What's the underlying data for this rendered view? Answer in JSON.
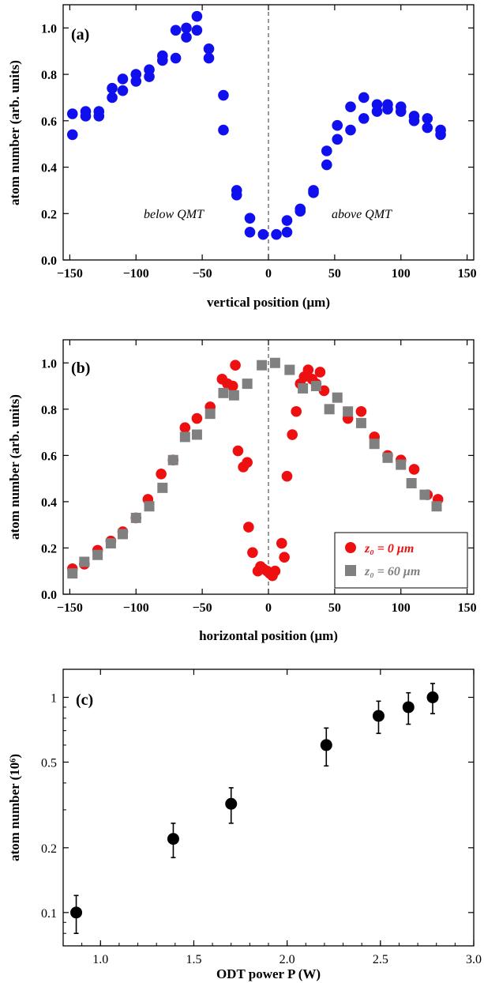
{
  "chart_data": [
    {
      "type": "scatter",
      "panel_label": "(a)",
      "xlabel": "vertical position (μm)",
      "ylabel": "atom number  (arb. units)",
      "xlim": [
        -155,
        155
      ],
      "ylim": [
        0,
        1.1
      ],
      "xticks": [
        -150,
        -100,
        -50,
        0,
        50,
        100,
        150
      ],
      "xtick_labels": [
        "−150",
        "−100",
        "−50",
        "0",
        "50",
        "100",
        "150"
      ],
      "yticks": [
        0,
        0.2,
        0.4,
        0.6,
        0.8,
        1.0
      ],
      "ytick_labels": [
        "0.0",
        "0.2",
        "0.4",
        "0.6",
        "0.8",
        "1.0"
      ],
      "vline_x": 0,
      "annotations": [
        {
          "text": "below QMT",
          "x": -75,
          "y": 0.22
        },
        {
          "text": "above QMT",
          "x": 72,
          "y": 0.22
        }
      ],
      "series": [
        {
          "color": "#1010ee",
          "marker": "circle",
          "x": [
            -148,
            -148,
            -138,
            -138,
            -128,
            -128,
            -118,
            -118,
            -110,
            -110,
            -100,
            -100,
            -90,
            -90,
            -80,
            -80,
            -70,
            -70,
            -62,
            -62,
            -54,
            -54,
            -45,
            -45,
            -34,
            -34,
            -24,
            -24,
            -14,
            -14,
            -4,
            6,
            14,
            14,
            24,
            24,
            34,
            34,
            44,
            44,
            52,
            52,
            62,
            62,
            72,
            72,
            82,
            82,
            90,
            90,
            100,
            100,
            110,
            110,
            120,
            120,
            130,
            130
          ],
          "y": [
            0.63,
            0.54,
            0.64,
            0.62,
            0.64,
            0.62,
            0.74,
            0.7,
            0.78,
            0.73,
            0.8,
            0.77,
            0.82,
            0.79,
            0.88,
            0.86,
            0.99,
            0.87,
            1.0,
            0.96,
            1.05,
            0.99,
            0.91,
            0.87,
            0.71,
            0.56,
            0.3,
            0.28,
            0.18,
            0.12,
            0.11,
            0.11,
            0.17,
            0.12,
            0.22,
            0.21,
            0.3,
            0.29,
            0.47,
            0.41,
            0.58,
            0.52,
            0.66,
            0.56,
            0.7,
            0.61,
            0.67,
            0.64,
            0.67,
            0.65,
            0.66,
            0.64,
            0.62,
            0.6,
            0.61,
            0.57,
            0.56,
            0.54
          ]
        }
      ]
    },
    {
      "type": "scatter",
      "panel_label": "(b)",
      "xlabel": "horizontal position (μm)",
      "ylabel": "atom number  (arb. units)",
      "xlim": [
        -155,
        155
      ],
      "ylim": [
        0,
        1.1
      ],
      "xticks": [
        -150,
        -100,
        -50,
        0,
        50,
        100,
        150
      ],
      "xtick_labels": [
        "−150",
        "−100",
        "−50",
        "0",
        "50",
        "100",
        "150"
      ],
      "yticks": [
        0,
        0.2,
        0.4,
        0.6,
        0.8,
        1.0
      ],
      "ytick_labels": [
        "0.0",
        "0.2",
        "0.4",
        "0.6",
        "0.8",
        "1.0"
      ],
      "vline_x": 0,
      "legend_position": "bottom-right",
      "series": [
        {
          "name": "z₀ = 0 μm",
          "color": "#ee1010",
          "marker": "circle",
          "x": [
            -148,
            -139,
            -129,
            -119,
            -110,
            -100,
            -91,
            -81,
            -72,
            -63,
            -54,
            -44,
            -35,
            -31,
            -27,
            -25,
            -23,
            -19,
            -16,
            -15,
            -12,
            -8,
            -6,
            -4,
            -1,
            1,
            3,
            5,
            10,
            12,
            14,
            18,
            21,
            24,
            27,
            30,
            33,
            36,
            39,
            42,
            60,
            70,
            80,
            90,
            100,
            110,
            120,
            128
          ],
          "y": [
            0.11,
            0.13,
            0.19,
            0.23,
            0.27,
            0.33,
            0.41,
            0.52,
            0.58,
            0.72,
            0.76,
            0.81,
            0.93,
            0.91,
            0.9,
            0.99,
            0.62,
            0.55,
            0.57,
            0.29,
            0.18,
            0.1,
            0.12,
            0.11,
            0.1,
            0.09,
            0.08,
            0.1,
            0.22,
            0.16,
            0.51,
            0.69,
            0.79,
            0.91,
            0.94,
            0.97,
            0.93,
            0.91,
            0.96,
            0.88,
            0.76,
            0.79,
            0.68,
            0.6,
            0.58,
            0.54,
            0.43,
            0.41
          ]
        },
        {
          "name": "z₀ = 60 μm",
          "color": "#808080",
          "marker": "square",
          "x": [
            -148,
            -139,
            -129,
            -119,
            -110,
            -100,
            -90,
            -80,
            -72,
            -63,
            -54,
            -44,
            -34,
            -26,
            -16,
            -5,
            5,
            16,
            26,
            36,
            46,
            52,
            60,
            70,
            80,
            90,
            100,
            108,
            118,
            127
          ],
          "y": [
            0.09,
            0.14,
            0.17,
            0.22,
            0.26,
            0.33,
            0.38,
            0.46,
            0.58,
            0.68,
            0.69,
            0.78,
            0.87,
            0.86,
            0.91,
            0.99,
            1.0,
            0.97,
            0.89,
            0.9,
            0.8,
            0.85,
            0.79,
            0.74,
            0.65,
            0.59,
            0.56,
            0.48,
            0.43,
            0.38
          ]
        }
      ]
    },
    {
      "type": "scatter",
      "panel_label": "(c)",
      "xlabel": "ODT power P (W)",
      "ylabel": "atom number  (10⁶)",
      "xlim": [
        0.8,
        3.0
      ],
      "ylim": [
        0.07,
        1.35
      ],
      "yscale": "log",
      "xticks": [
        1.0,
        1.5,
        2.0,
        2.5,
        3.0
      ],
      "xtick_labels": [
        "1.0",
        "1.5",
        "2.0",
        "2.5",
        "3.0"
      ],
      "yticks": [
        0.1,
        0.2,
        0.5,
        1
      ],
      "ytick_labels": [
        "0.1",
        "0.2",
        "0.5",
        "1"
      ],
      "series": [
        {
          "color": "#000000",
          "marker": "circle",
          "errorbars": true,
          "x": [
            0.87,
            1.39,
            1.7,
            2.21,
            2.49,
            2.65,
            2.78
          ],
          "y": [
            0.1,
            0.22,
            0.32,
            0.6,
            0.82,
            0.9,
            1.0
          ],
          "err": [
            0.02,
            0.04,
            0.06,
            0.12,
            0.14,
            0.15,
            0.16
          ]
        }
      ]
    }
  ]
}
